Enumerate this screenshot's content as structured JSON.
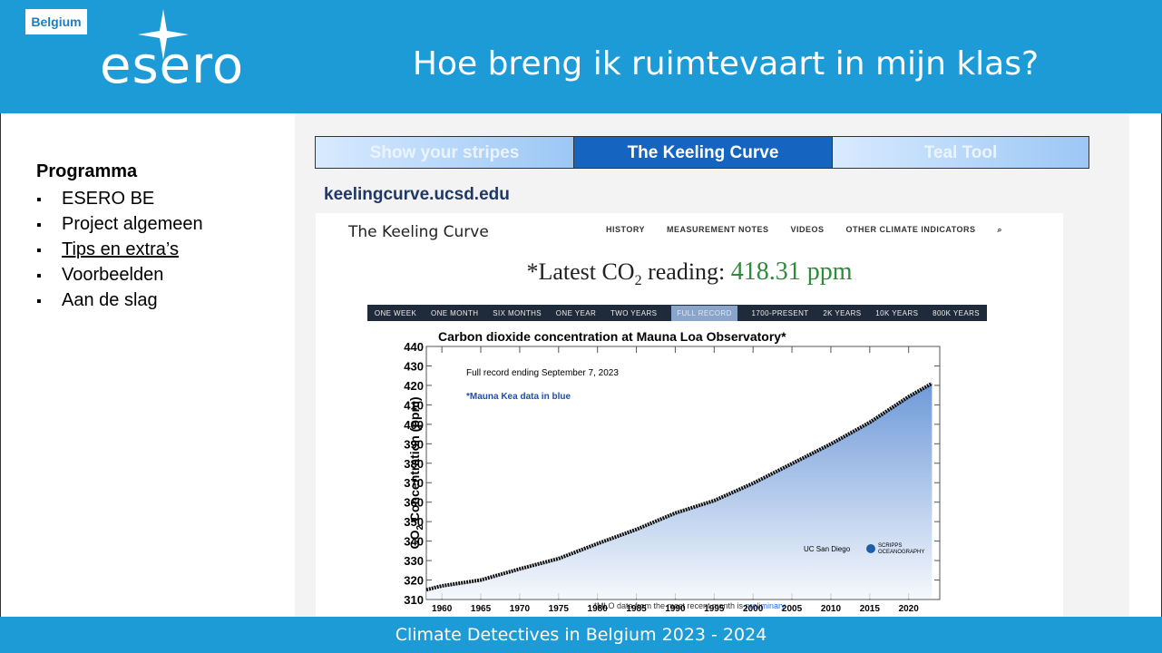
{
  "header": {
    "badge": "Belgium",
    "logo": "esero",
    "title": "Hoe breng ik ruimtevaart in mijn klas?"
  },
  "sidebar": {
    "heading": "Programma",
    "items": [
      "ESERO BE",
      "Project algemeen",
      "Tips en extra’s",
      "Voorbeelden",
      "Aan de slag"
    ],
    "underlined_item": 2
  },
  "tabs": [
    "Show your stripes",
    "The Keeling Curve",
    "Teal Tool"
  ],
  "active_tab": 1,
  "url": "keelingcurve.ucsd.edu",
  "site": {
    "brand": "The Keeling Curve",
    "menu": [
      "HISTORY",
      "MEASUREMENT NOTES",
      "VIDEOS",
      "OTHER CLIMATE INDICATORS"
    ],
    "reading": {
      "prefix": "*Latest CO",
      "sub": "2",
      "middle": " reading: ",
      "value": "418.31 ppm"
    },
    "ranges": [
      "ONE WEEK",
      "ONE MONTH",
      "SIX MONTHS",
      "ONE YEAR",
      "TWO YEARS",
      "FULL RECORD",
      "1700-PRESENT",
      "2K YEARS",
      "10K YEARS",
      "800K YEARS"
    ],
    "active_range": 5,
    "logos": [
      "UC San Diego",
      "SCRIPPS",
      "OCEANOGRAPHY"
    ],
    "footnote": "*MLO data from the most recent month is ",
    "footnote_link": "preliminary"
  },
  "chart_data": {
    "type": "line",
    "title": "Carbon dioxide concentration at Mauna Loa Observatory*",
    "annotations": [
      "Full record ending September 7, 2023",
      "*Mauna Kea data in blue"
    ],
    "y_label": {
      "main": "CO",
      "sub": "2",
      "rest": " Concentration (ppm)"
    },
    "x": [
      1958,
      1960,
      1965,
      1970,
      1975,
      1980,
      1985,
      1990,
      1995,
      2000,
      2005,
      2010,
      2015,
      2020,
      2023
    ],
    "series": [
      {
        "name": "CO2",
        "color": "#111111",
        "values": [
          315,
          317,
          320,
          325.7,
          331,
          338.7,
          346,
          354.4,
          360.8,
          369.7,
          379.8,
          389.9,
          401,
          414.2,
          421
        ]
      }
    ],
    "xlim": [
      1958,
      2024
    ],
    "ylim": [
      310,
      440
    ],
    "xticks": [
      1960,
      1965,
      1970,
      1975,
      1980,
      1985,
      1990,
      1995,
      2000,
      2005,
      2010,
      2015,
      2020
    ],
    "yticks": [
      310,
      320,
      330,
      340,
      350,
      360,
      370,
      380,
      390,
      400,
      410,
      420,
      430,
      440
    ]
  },
  "footer": "Climate Detectives in Belgium 2023 - 2024"
}
